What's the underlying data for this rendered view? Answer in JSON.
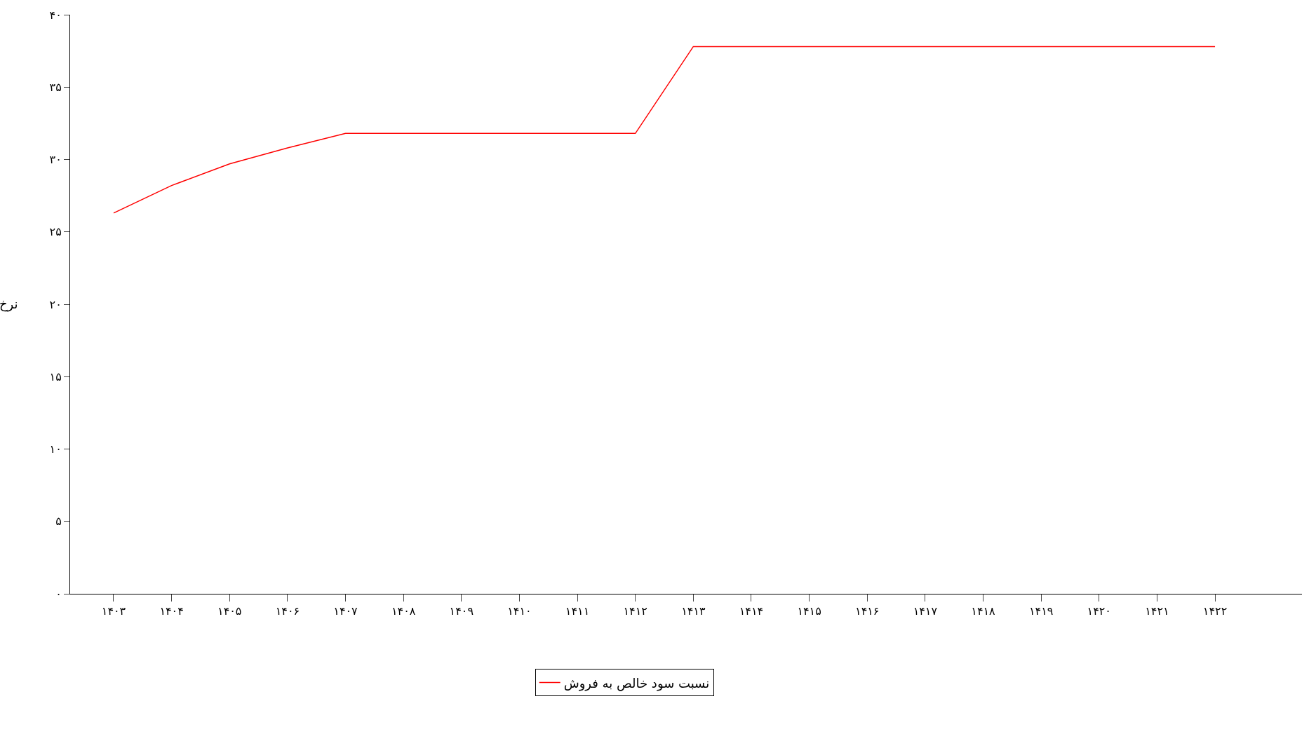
{
  "chart_data": {
    "type": "line",
    "ylabel": "نرخ",
    "categories": [
      "۱۴۰۳",
      "۱۴۰۴",
      "۱۴۰۵",
      "۱۴۰۶",
      "۱۴۰۷",
      "۱۴۰۸",
      "۱۴۰۹",
      "۱۴۱۰",
      "۱۴۱۱",
      "۱۴۱۲",
      "۱۴۱۳",
      "۱۴۱۴",
      "۱۴۱۵",
      "۱۴۱۶",
      "۱۴۱۷",
      "۱۴۱۸",
      "۱۴۱۹",
      "۱۴۲۰",
      "۱۴۲۱",
      "۱۴۲۲"
    ],
    "series": [
      {
        "name": "نسبت سود خالص به فروش",
        "color": "#ff0000",
        "values": [
          26.3,
          28.2,
          29.7,
          30.8,
          31.8,
          31.8,
          31.8,
          31.8,
          31.8,
          31.8,
          37.8,
          37.8,
          37.8,
          37.8,
          37.8,
          37.8,
          37.8,
          37.8,
          37.8,
          37.8
        ]
      }
    ],
    "ylim": [
      0,
      40
    ],
    "yticks": [
      {
        "value": 0,
        "label": "۰"
      },
      {
        "value": 5,
        "label": "۵"
      },
      {
        "value": 10,
        "label": "۱۰"
      },
      {
        "value": 15,
        "label": "۱۵"
      },
      {
        "value": 20,
        "label": "۲۰"
      },
      {
        "value": 25,
        "label": "۲۵"
      },
      {
        "value": 30,
        "label": "۳۰"
      },
      {
        "value": 35,
        "label": "۳۵"
      },
      {
        "value": 40,
        "label": "۴۰"
      }
    ],
    "legend": "bottom",
    "marker": "none",
    "line_style": "solid"
  }
}
